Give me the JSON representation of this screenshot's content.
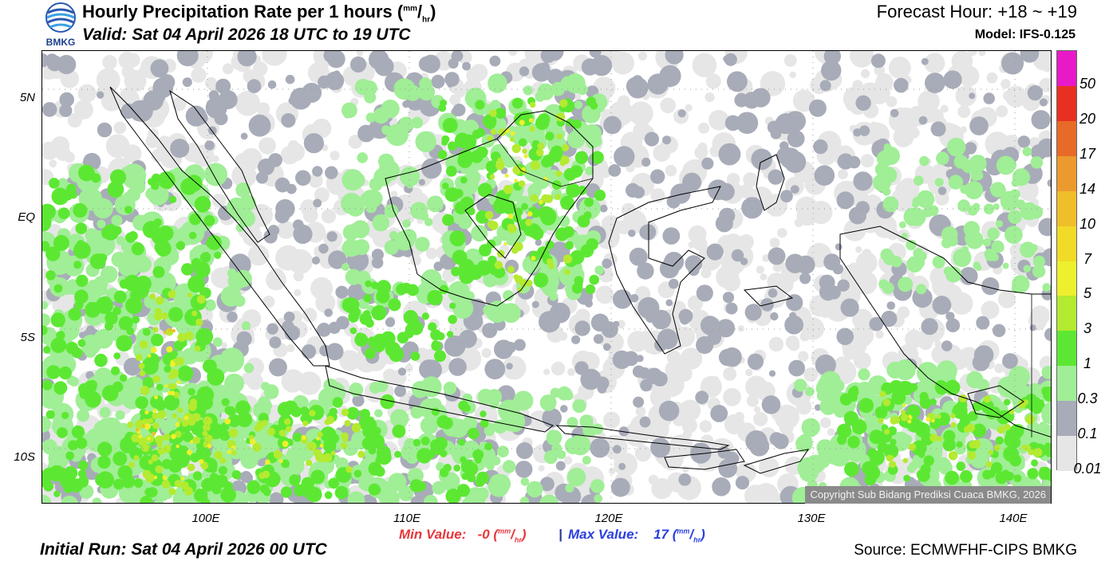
{
  "header": {
    "title_main": "Hourly Precipitation Rate per 1 hours (",
    "title_unit_mm": "mm",
    "title_unit_hr": "hr",
    "title_close": ")",
    "valid": "Valid: Sat 04 April 2026 18 UTC to 19 UTC",
    "forecast_hour": "Forecast Hour: +18 ~ +19",
    "model": "Model: IFS-0.125",
    "logo_text": "BMKG"
  },
  "map": {
    "lat_labels": [
      "5N",
      "EQ",
      "5S",
      "10S"
    ],
    "lon_labels": [
      "100E",
      "110E",
      "120E",
      "130E",
      "140E"
    ],
    "copyright": "Copyright Sub Bidang Prediksi Cuaca BMKG, 2026"
  },
  "colorbar": {
    "labels": [
      "50",
      "20",
      "17",
      "14",
      "10",
      "7",
      "5",
      "3",
      "1",
      "0.3",
      "0.1",
      "0.01"
    ],
    "colors": [
      "#e81ac8",
      "#e83020",
      "#e86a28",
      "#ec9a2e",
      "#f0be2a",
      "#f2da28",
      "#eef02e",
      "#b4ea30",
      "#5ce832",
      "#a0ee96",
      "#a8acb8",
      "#e6e6e6"
    ]
  },
  "footer": {
    "min_label": "Min Value:",
    "min_value": "-0",
    "max_label": "Max Value:",
    "max_value": "17",
    "unit_mm": "mm",
    "unit_hr": "hr",
    "separator": "|",
    "initial_run": "Initial Run: Sat 04 April 2026 00 UTC",
    "source": "Source: ECMWFHF-CIPS BMKG"
  }
}
